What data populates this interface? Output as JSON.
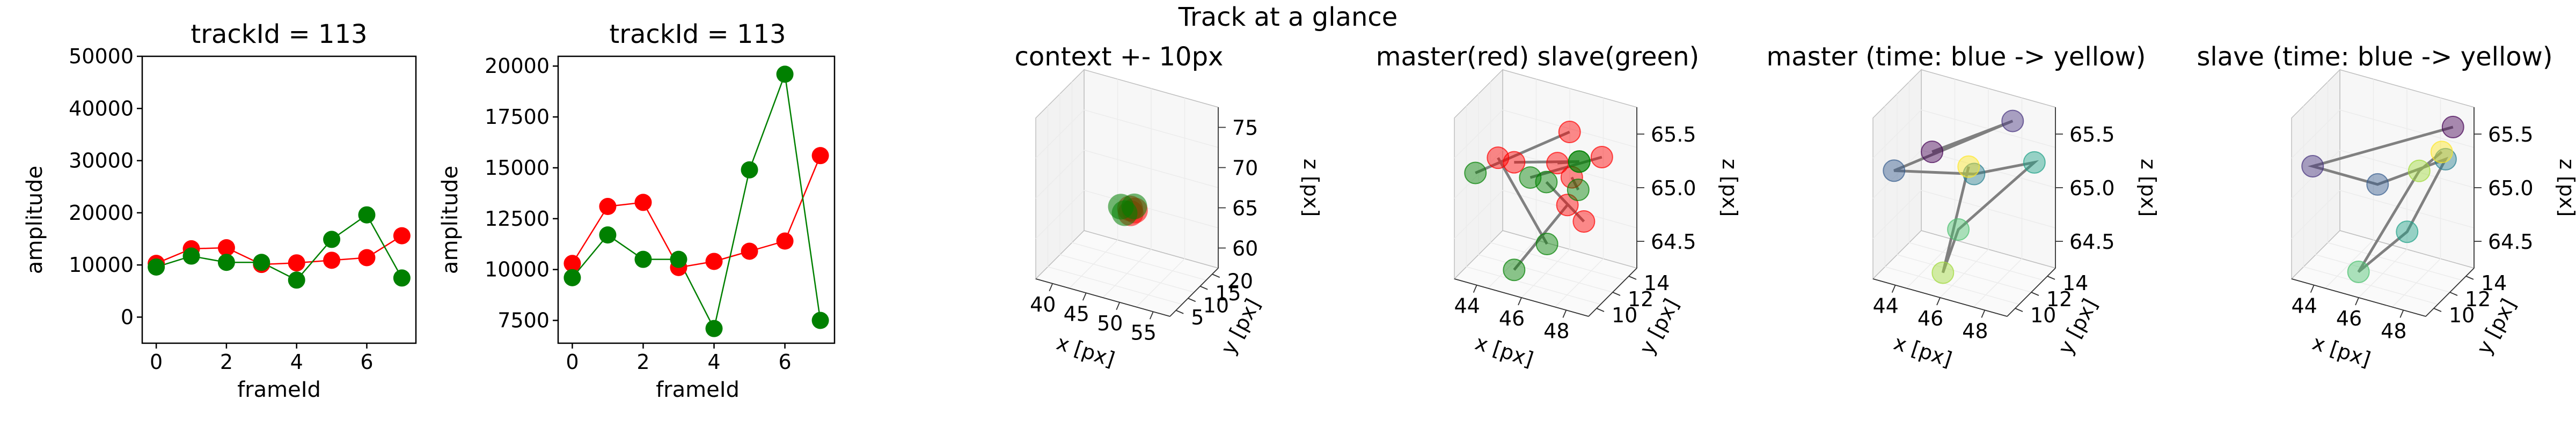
{
  "suptitle": "Track at a glance",
  "chart_data": [
    {
      "id": "amp_full",
      "type": "line",
      "title": "trackId = 113",
      "xlabel": "frameId",
      "ylabel": "amplitude",
      "xlim": [
        -0.4,
        7.4
      ],
      "ylim": [
        -5000,
        50000
      ],
      "xticks": [
        0,
        2,
        4,
        6
      ],
      "yticks": [
        0,
        10000,
        20000,
        30000,
        40000,
        50000
      ],
      "x": [
        0,
        1,
        2,
        3,
        4,
        5,
        6,
        7
      ],
      "series": [
        {
          "color": "#ff0000",
          "values": [
            10300,
            13100,
            13300,
            10100,
            10400,
            10900,
            11400,
            15600
          ]
        },
        {
          "color": "#008000",
          "values": [
            9600,
            11700,
            10500,
            10500,
            7100,
            14900,
            19600,
            7500
          ]
        }
      ]
    },
    {
      "id": "amp_zoom",
      "type": "line",
      "title": "trackId = 113",
      "xlabel": "frameId",
      "ylabel": "amplitude",
      "xlim": [
        -0.4,
        7.4
      ],
      "ylim": [
        6380,
        20480
      ],
      "xticks": [
        0,
        2,
        4,
        6
      ],
      "yticks": [
        7500,
        10000,
        12500,
        15000,
        17500,
        20000
      ],
      "x": [
        0,
        1,
        2,
        3,
        4,
        5,
        6,
        7
      ],
      "series": [
        {
          "color": "#ff0000",
          "values": [
            10300,
            13100,
            13300,
            10100,
            10400,
            10900,
            11400,
            15600
          ]
        },
        {
          "color": "#008000",
          "values": [
            9600,
            11700,
            10500,
            10500,
            7100,
            14900,
            19600,
            7500
          ]
        }
      ]
    },
    {
      "id": "context3d",
      "type": "scatter",
      "title": "context +- 10px",
      "xlabel": "x [px]",
      "ylabel": "y [px]",
      "zlabel": "z [px]",
      "xticks": [
        "40",
        "45",
        "50",
        "55"
      ],
      "yticks": [
        "5",
        "10",
        "15",
        "20"
      ],
      "zticks": [
        "60",
        "65",
        "70",
        "75"
      ],
      "series": [
        {
          "color": "#ff0000",
          "points": [
            [
              48,
              11,
              65
            ],
            [
              48.5,
              11.5,
              65.3
            ],
            [
              47.5,
              12,
              65.2
            ]
          ]
        },
        {
          "color": "#008000",
          "points": [
            [
              46,
              12,
              65.1
            ],
            [
              47,
              11,
              64.8
            ],
            [
              48,
              12.5,
              65.4
            ]
          ]
        }
      ]
    },
    {
      "id": "master_slave3d",
      "type": "scatter",
      "title": "master(red) slave(green)",
      "xlabel": "x [px]",
      "ylabel": "y [px]",
      "zlabel": "z [px]",
      "xticks": [
        "44",
        "46",
        "48"
      ],
      "yticks": [
        "10",
        "12",
        "14"
      ],
      "zticks": [
        "64.5",
        "65.0",
        "65.5"
      ],
      "line_color": "#808080",
      "series": [
        {
          "color": "#ff0000",
          "points": [
            [
              46.5,
              12.5,
              65.7
            ],
            [
              45.5,
              12.0,
              65.55
            ],
            [
              47.5,
              12.5,
              65.55
            ],
            [
              47.0,
              12.2,
              65.45
            ],
            [
              45.0,
              12.0,
              65.55
            ],
            [
              46.0,
              12.8,
              64.85
            ],
            [
              46.8,
              12.6,
              64.85
            ],
            [
              46.7,
              12.1,
              65.6
            ]
          ]
        },
        {
          "color": "#008000",
          "points": [
            [
              44.3,
              12.0,
              65.35
            ],
            [
              46.8,
              12.5,
              65.45
            ],
            [
              46.0,
              12.0,
              65.45
            ],
            [
              47.2,
              12.2,
              65.35
            ],
            [
              45.8,
              12.5,
              64.6
            ],
            [
              45.5,
              12.0,
              64.55
            ],
            [
              46.5,
              12.0,
              65.45
            ],
            [
              46.8,
              12.5,
              65.45
            ]
          ]
        }
      ]
    },
    {
      "id": "master_time3d",
      "type": "scatter",
      "title": "master (time: blue -> yellow)",
      "xlabel": "x [px]",
      "ylabel": "y [px]",
      "zlabel": "z [px]",
      "xticks": [
        "44",
        "46",
        "48"
      ],
      "yticks": [
        "10",
        "12",
        "14"
      ],
      "zticks": [
        "64.5",
        "65.0",
        "65.5"
      ],
      "line_color": "#808080",
      "points": [
        [
          46.0,
          12.0,
          65.7
        ],
        [
          46.8,
          12.5,
          65.75
        ],
        [
          45.3,
          12.0,
          65.45
        ],
        [
          46.5,
          12.2,
          65.45
        ],
        [
          47.2,
          12.5,
          65.45
        ],
        [
          45.8,
          12.5,
          64.7
        ],
        [
          46.2,
          12.0,
          64.7
        ],
        [
          46.4,
          12.2,
          65.5
        ]
      ],
      "colors": [
        "#440154",
        "#46327e",
        "#365c8d",
        "#277f8e",
        "#1fa187",
        "#4ac16d",
        "#a0da39",
        "#fde725"
      ]
    },
    {
      "id": "slave_time3d",
      "type": "scatter",
      "title": "slave (time: blue -> yellow)",
      "xlabel": "x [px]",
      "ylabel": "y [px]",
      "zlabel": "z [px]",
      "xticks": [
        "44",
        "46",
        "48"
      ],
      "yticks": [
        "10",
        "12",
        "14"
      ],
      "zticks": [
        "64.5",
        "65.0",
        "65.5"
      ],
      "line_color": "#808080",
      "points": [
        [
          47.0,
          12.5,
          65.6
        ],
        [
          44.3,
          12.0,
          65.35
        ],
        [
          46.0,
          12.0,
          65.35
        ],
        [
          47.0,
          12.4,
          65.4
        ],
        [
          45.8,
          12.5,
          64.65
        ],
        [
          45.5,
          12.0,
          64.6
        ],
        [
          46.7,
          12.2,
          65.4
        ],
        [
          46.9,
          12.4,
          65.45
        ]
      ],
      "colors": [
        "#440154",
        "#46327e",
        "#365c8d",
        "#277f8e",
        "#1fa187",
        "#4ac16d",
        "#a0da39",
        "#fde725"
      ]
    }
  ]
}
